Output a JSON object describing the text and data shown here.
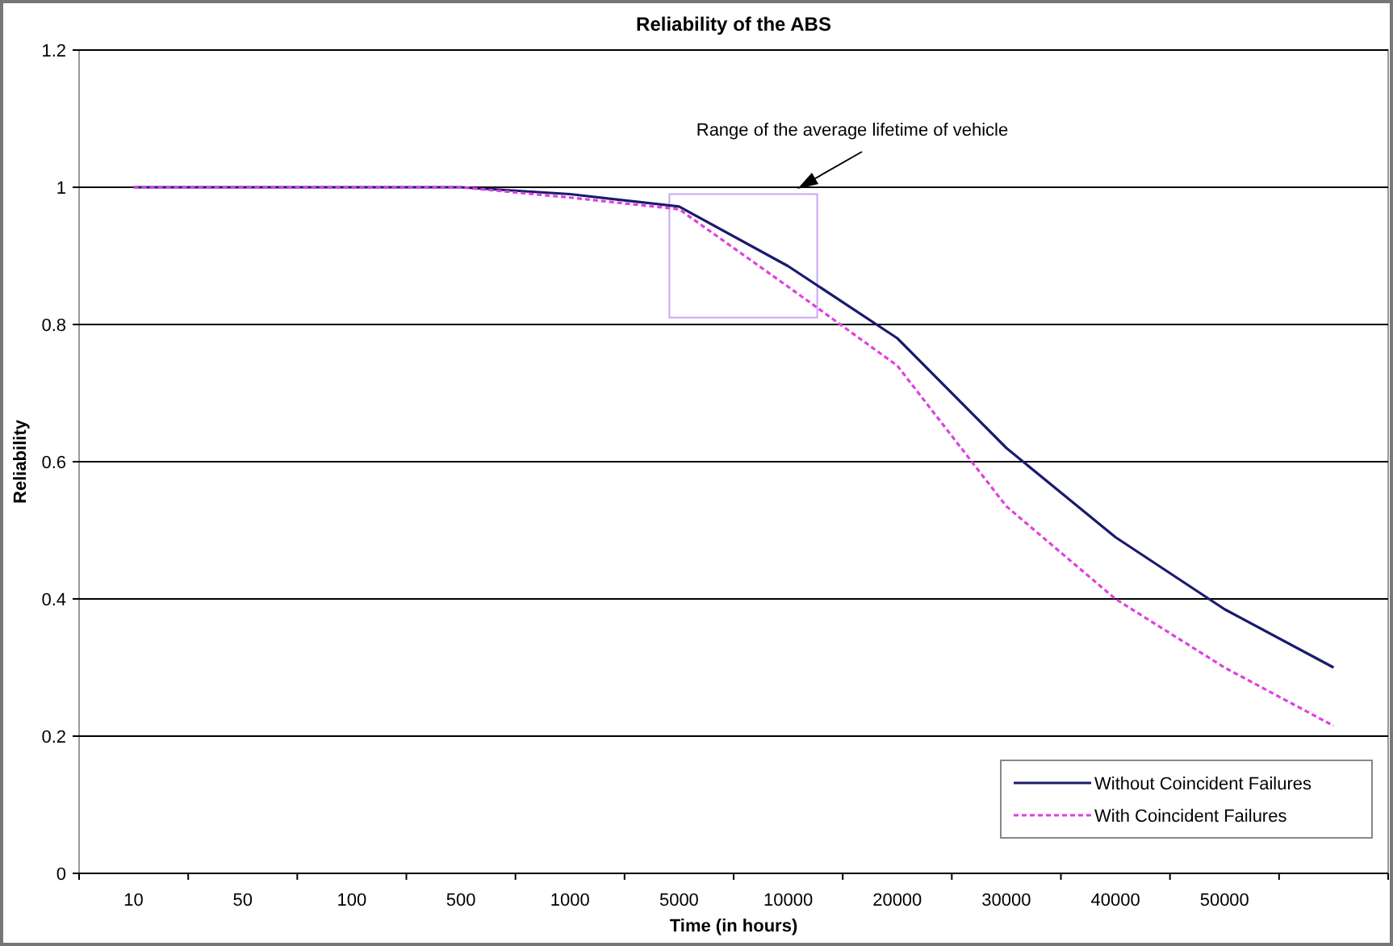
{
  "chart_data": {
    "type": "line",
    "title": "Reliability of the ABS",
    "xlabel": "Time (in hours)",
    "ylabel": "Reliability",
    "categories": [
      "10",
      "50",
      "100",
      "500",
      "1000",
      "5000",
      "10000",
      "20000",
      "30000",
      "40000",
      "50000",
      null
    ],
    "series": [
      {
        "name": "Without Coincident Failures",
        "color": "#1a1a6e",
        "line_style": "solid",
        "values": [
          1,
          1,
          1,
          1,
          0.99,
          0.972,
          0.885,
          0.78,
          0.62,
          0.49,
          0.385,
          0.3
        ]
      },
      {
        "name": "With Coincident Failures",
        "color": "#e040e0",
        "line_style": "dashed",
        "values": [
          1,
          1,
          1,
          1,
          0.985,
          0.968,
          0.855,
          0.74,
          0.535,
          0.4,
          0.3,
          0.215
        ]
      }
    ],
    "ylim": [
      0,
      1.2
    ],
    "yticks": [
      0,
      0.2,
      0.4,
      0.6,
      0.8,
      1,
      1.2
    ],
    "grid": "y",
    "legend": "bottom right",
    "marker": "none",
    "annotations": [
      "Range of the average lifetime of vehicle"
    ]
  }
}
